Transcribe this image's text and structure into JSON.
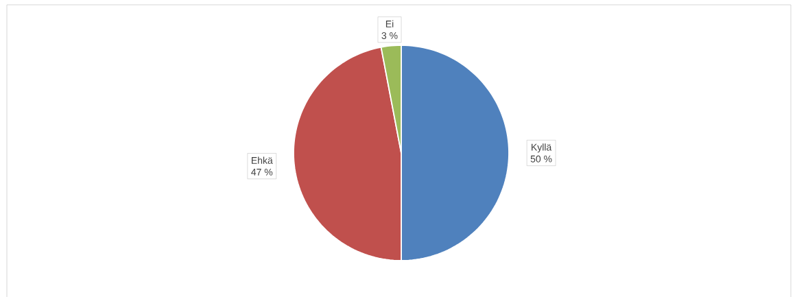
{
  "chart_data": {
    "type": "pie",
    "categories": [
      "Kyllä",
      "Ehkä",
      "Ei"
    ],
    "values": [
      50,
      47,
      3
    ],
    "value_labels": [
      "50 %",
      "47 %",
      "3 %"
    ],
    "colors": [
      "#4f81bd",
      "#c0504d",
      "#9bbb59"
    ]
  }
}
